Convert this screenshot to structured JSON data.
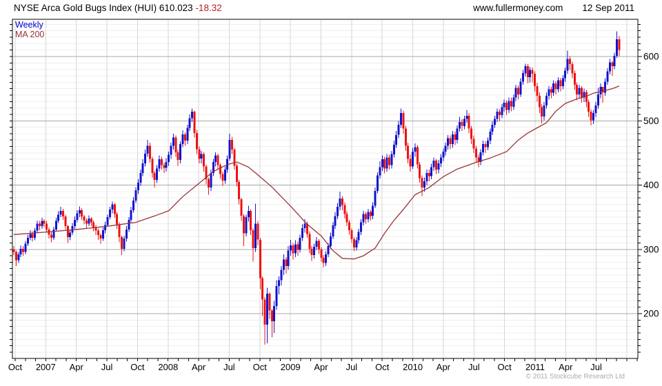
{
  "header": {
    "title": "NYSE Arca Gold Bugs Index (HUI)",
    "last_price": "610.023",
    "change": "-18.32",
    "site": "www.fullermoney.com",
    "date": "12 Sep 2011"
  },
  "legend": {
    "series": "Weekly",
    "ma": "MA 200"
  },
  "footer": {
    "copyright": "© 2011 Stockcube Research Ltd"
  },
  "colors": {
    "up": "#1212cc",
    "down": "#ee1111",
    "ma": "#993333",
    "change_text": "#b22222",
    "grid_minor": "#efefef",
    "grid_major": "#a8a8a8",
    "grid_vertical": "#d6d6d6",
    "frame": "#000000",
    "copyright": "#aaaaaa"
  },
  "chart_data": {
    "type": "candlestick",
    "interval": "weekly",
    "title": "NYSE Arca Gold Bugs Index (HUI)",
    "start": "Oct 2006",
    "end": "12 Sep 2011",
    "last_close": 610.023,
    "first_open": 300,
    "y_axis": {
      "side": "right",
      "ticks": [
        200,
        300,
        400,
        500,
        600
      ],
      "minor_step": 10,
      "range": [
        130,
        658
      ]
    },
    "x_axis": {
      "labels": [
        "Oct",
        "2007",
        "Apr",
        "Jul",
        "Oct",
        "2008",
        "Apr",
        "Jul",
        "Oct",
        "2009",
        "Apr",
        "Jul",
        "Oct",
        "2010",
        "Apr",
        "Jul",
        "Oct",
        "2011",
        "Apr",
        "Jul"
      ]
    },
    "candles_hlc": [
      [
        305,
        291,
        296
      ],
      [
        298,
        274,
        283
      ],
      [
        296,
        279,
        292
      ],
      [
        306,
        288,
        301
      ],
      [
        305,
        290,
        296
      ],
      [
        313,
        292,
        309
      ],
      [
        323,
        305,
        318
      ],
      [
        330,
        314,
        324
      ],
      [
        328,
        312,
        318
      ],
      [
        333,
        314,
        329
      ],
      [
        345,
        326,
        340
      ],
      [
        344,
        330,
        336
      ],
      [
        349,
        332,
        344
      ],
      [
        347,
        334,
        340
      ],
      [
        344,
        326,
        331
      ],
      [
        334,
        317,
        323
      ],
      [
        327,
        311,
        318
      ],
      [
        335,
        315,
        331
      ],
      [
        349,
        329,
        344
      ],
      [
        359,
        341,
        354
      ],
      [
        366,
        350,
        360
      ],
      [
        363,
        346,
        351
      ],
      [
        354,
        331,
        336
      ],
      [
        338,
        310,
        319
      ],
      [
        330,
        314,
        326
      ],
      [
        341,
        322,
        336
      ],
      [
        351,
        332,
        346
      ],
      [
        361,
        342,
        356
      ],
      [
        367,
        350,
        361
      ],
      [
        364,
        346,
        351
      ],
      [
        354,
        339,
        345
      ],
      [
        348,
        333,
        340
      ],
      [
        353,
        336,
        348
      ],
      [
        350,
        336,
        342
      ],
      [
        345,
        328,
        334
      ],
      [
        338,
        322,
        329
      ],
      [
        332,
        315,
        322
      ],
      [
        325,
        309,
        317
      ],
      [
        334,
        313,
        330
      ],
      [
        343,
        325,
        338
      ],
      [
        354,
        335,
        350
      ],
      [
        366,
        347,
        362
      ],
      [
        374,
        356,
        370
      ],
      [
        372,
        349,
        355
      ],
      [
        358,
        332,
        339
      ],
      [
        342,
        311,
        319
      ],
      [
        321,
        291,
        301
      ],
      [
        321,
        297,
        317
      ],
      [
        336,
        312,
        331
      ],
      [
        350,
        327,
        346
      ],
      [
        366,
        342,
        361
      ],
      [
        381,
        357,
        376
      ],
      [
        397,
        372,
        392
      ],
      [
        409,
        386,
        404
      ],
      [
        424,
        399,
        419
      ],
      [
        440,
        414,
        434
      ],
      [
        455,
        429,
        449
      ],
      [
        470,
        444,
        461
      ],
      [
        466,
        435,
        441
      ],
      [
        444,
        412,
        419
      ],
      [
        422,
        396,
        408
      ],
      [
        431,
        403,
        426
      ],
      [
        446,
        421,
        440
      ],
      [
        444,
        424,
        431
      ],
      [
        435,
        419,
        427
      ],
      [
        442,
        421,
        436
      ],
      [
        452,
        430,
        447
      ],
      [
        466,
        441,
        461
      ],
      [
        480,
        455,
        474
      ],
      [
        477,
        444,
        451
      ],
      [
        455,
        430,
        439
      ],
      [
        468,
        434,
        464
      ],
      [
        485,
        459,
        479
      ],
      [
        482,
        461,
        469
      ],
      [
        494,
        464,
        489
      ],
      [
        510,
        484,
        504
      ],
      [
        519,
        498,
        514
      ],
      [
        516,
        474,
        481
      ],
      [
        486,
        448,
        456
      ],
      [
        460,
        434,
        441
      ],
      [
        453,
        434,
        448
      ],
      [
        451,
        421,
        429
      ],
      [
        432,
        401,
        409
      ],
      [
        412,
        385,
        396
      ],
      [
        424,
        391,
        419
      ],
      [
        441,
        414,
        436
      ],
      [
        451,
        429,
        446
      ],
      [
        449,
        424,
        431
      ],
      [
        434,
        410,
        417
      ],
      [
        421,
        399,
        407
      ],
      [
        429,
        402,
        424
      ],
      [
        446,
        419,
        441
      ],
      [
        480,
        438,
        470
      ],
      [
        475,
        448,
        455
      ],
      [
        458,
        424,
        430
      ],
      [
        434,
        398,
        405
      ],
      [
        408,
        370,
        378
      ],
      [
        380,
        344,
        352
      ],
      [
        355,
        305,
        325
      ],
      [
        354,
        320,
        350
      ],
      [
        368,
        343,
        360
      ],
      [
        362,
        322,
        330
      ],
      [
        333,
        281,
        302
      ],
      [
        371,
        296,
        340
      ],
      [
        344,
        306,
        315
      ],
      [
        318,
        238,
        255
      ],
      [
        258,
        196,
        222
      ],
      [
        226,
        152,
        183
      ],
      [
        240,
        154,
        231
      ],
      [
        233,
        192,
        205
      ],
      [
        207,
        163,
        188
      ],
      [
        220,
        170,
        212
      ],
      [
        252,
        206,
        243
      ],
      [
        258,
        230,
        252
      ],
      [
        274,
        244,
        268
      ],
      [
        292,
        260,
        284
      ],
      [
        288,
        262,
        274
      ],
      [
        305,
        268,
        298
      ],
      [
        315,
        290,
        306
      ],
      [
        310,
        284,
        294
      ],
      [
        314,
        288,
        308
      ],
      [
        312,
        290,
        299
      ],
      [
        323,
        295,
        318
      ],
      [
        339,
        313,
        333
      ],
      [
        347,
        326,
        340
      ],
      [
        343,
        318,
        324
      ],
      [
        328,
        294,
        301
      ],
      [
        305,
        282,
        291
      ],
      [
        309,
        286,
        304
      ],
      [
        319,
        299,
        313
      ],
      [
        316,
        293,
        300
      ],
      [
        303,
        281,
        287
      ],
      [
        291,
        272,
        279
      ],
      [
        297,
        274,
        292
      ],
      [
        310,
        288,
        305
      ],
      [
        326,
        301,
        320
      ],
      [
        342,
        316,
        337
      ],
      [
        358,
        332,
        352
      ],
      [
        372,
        347,
        366
      ],
      [
        390,
        361,
        379
      ],
      [
        383,
        361,
        369
      ],
      [
        373,
        348,
        355
      ],
      [
        359,
        336,
        342
      ],
      [
        346,
        323,
        330
      ],
      [
        333,
        310,
        316
      ],
      [
        319,
        297,
        303
      ],
      [
        319,
        298,
        314
      ],
      [
        332,
        309,
        327
      ],
      [
        347,
        322,
        342
      ],
      [
        360,
        337,
        355
      ],
      [
        358,
        340,
        347
      ],
      [
        363,
        342,
        358
      ],
      [
        361,
        345,
        352
      ],
      [
        373,
        347,
        368
      ],
      [
        396,
        364,
        391
      ],
      [
        420,
        387,
        415
      ],
      [
        437,
        410,
        428
      ],
      [
        446,
        422,
        440
      ],
      [
        444,
        418,
        426
      ],
      [
        448,
        421,
        443
      ],
      [
        447,
        424,
        431
      ],
      [
        453,
        426,
        448
      ],
      [
        469,
        443,
        463
      ],
      [
        484,
        458,
        478
      ],
      [
        500,
        473,
        494
      ],
      [
        519,
        489,
        512
      ],
      [
        516,
        480,
        488
      ],
      [
        492,
        453,
        461
      ],
      [
        466,
        434,
        441
      ],
      [
        447,
        421,
        429
      ],
      [
        458,
        425,
        452
      ],
      [
        465,
        444,
        459
      ],
      [
        462,
        426,
        432
      ],
      [
        436,
        404,
        411
      ],
      [
        415,
        383,
        396
      ],
      [
        412,
        390,
        406
      ],
      [
        424,
        400,
        419
      ],
      [
        424,
        406,
        414
      ],
      [
        433,
        409,
        428
      ],
      [
        443,
        422,
        438
      ],
      [
        441,
        417,
        424
      ],
      [
        439,
        418,
        434
      ],
      [
        448,
        428,
        443
      ],
      [
        457,
        437,
        452
      ],
      [
        466,
        446,
        461
      ],
      [
        478,
        455,
        473
      ],
      [
        477,
        456,
        464
      ],
      [
        484,
        458,
        479
      ],
      [
        483,
        462,
        470
      ],
      [
        493,
        465,
        488
      ],
      [
        506,
        483,
        498
      ],
      [
        503,
        484,
        492
      ],
      [
        508,
        487,
        503
      ],
      [
        517,
        497,
        508
      ],
      [
        512,
        481,
        488
      ],
      [
        492,
        464,
        472
      ],
      [
        477,
        450,
        457
      ],
      [
        461,
        436,
        443
      ],
      [
        447,
        428,
        436
      ],
      [
        456,
        431,
        451
      ],
      [
        469,
        446,
        464
      ],
      [
        468,
        450,
        459
      ],
      [
        474,
        454,
        469
      ],
      [
        488,
        464,
        483
      ],
      [
        499,
        478,
        494
      ],
      [
        508,
        489,
        503
      ],
      [
        519,
        498,
        514
      ],
      [
        518,
        499,
        509
      ],
      [
        526,
        504,
        521
      ],
      [
        533,
        514,
        528
      ],
      [
        532,
        509,
        517
      ],
      [
        536,
        512,
        531
      ],
      [
        536,
        515,
        522
      ],
      [
        541,
        517,
        536
      ],
      [
        556,
        531,
        551
      ],
      [
        555,
        533,
        541
      ],
      [
        566,
        537,
        561
      ],
      [
        579,
        556,
        574
      ],
      [
        589,
        569,
        585
      ],
      [
        588,
        558,
        568
      ],
      [
        584,
        560,
        579
      ],
      [
        583,
        560,
        573
      ],
      [
        577,
        546,
        554
      ],
      [
        559,
        530,
        539
      ],
      [
        544,
        512,
        521
      ],
      [
        526,
        496,
        507
      ],
      [
        529,
        501,
        524
      ],
      [
        544,
        519,
        539
      ],
      [
        554,
        533,
        549
      ],
      [
        553,
        535,
        544
      ],
      [
        563,
        539,
        558
      ],
      [
        562,
        541,
        549
      ],
      [
        568,
        544,
        563
      ],
      [
        567,
        546,
        554
      ],
      [
        571,
        549,
        566
      ],
      [
        583,
        561,
        578
      ],
      [
        609,
        573,
        596
      ],
      [
        600,
        579,
        588
      ],
      [
        592,
        566,
        574
      ],
      [
        578,
        548,
        556
      ],
      [
        560,
        532,
        541
      ],
      [
        556,
        535,
        551
      ],
      [
        554,
        528,
        536
      ],
      [
        550,
        529,
        545
      ],
      [
        548,
        521,
        529
      ],
      [
        533,
        506,
        514
      ],
      [
        518,
        493,
        501
      ],
      [
        517,
        495,
        512
      ],
      [
        529,
        506,
        524
      ],
      [
        551,
        519,
        541
      ],
      [
        558,
        535,
        553
      ],
      [
        549,
        528,
        544
      ],
      [
        566,
        539,
        561
      ],
      [
        582,
        556,
        577
      ],
      [
        596,
        572,
        591
      ],
      [
        593,
        570,
        585
      ],
      [
        606,
        580,
        601
      ],
      [
        639,
        598,
        627
      ],
      [
        632,
        600,
        610.02
      ]
    ],
    "ma200": [
      [
        0,
        323
      ],
      [
        14,
        327
      ],
      [
        27,
        331
      ],
      [
        40,
        336
      ],
      [
        52,
        342
      ],
      [
        60,
        352
      ],
      [
        66,
        360
      ],
      [
        72,
        382
      ],
      [
        79,
        403
      ],
      [
        85,
        421
      ],
      [
        91,
        432
      ],
      [
        95,
        436
      ],
      [
        100,
        428
      ],
      [
        104,
        416
      ],
      [
        110,
        397
      ],
      [
        118,
        367
      ],
      [
        125,
        339
      ],
      [
        131,
        321
      ],
      [
        136,
        298
      ],
      [
        140,
        286
      ],
      [
        145,
        285
      ],
      [
        149,
        290
      ],
      [
        154,
        302
      ],
      [
        158,
        325
      ],
      [
        162,
        345
      ],
      [
        166,
        362
      ],
      [
        171,
        385
      ],
      [
        177,
        396
      ],
      [
        183,
        413
      ],
      [
        189,
        425
      ],
      [
        196,
        434
      ],
      [
        203,
        442
      ],
      [
        210,
        452
      ],
      [
        215,
        470
      ],
      [
        219,
        481
      ],
      [
        223,
        489
      ],
      [
        227,
        497
      ],
      [
        231,
        515
      ],
      [
        235,
        527
      ],
      [
        240,
        534
      ],
      [
        244,
        538
      ],
      [
        247,
        543
      ],
      [
        252,
        547
      ],
      [
        255,
        550
      ],
      [
        258,
        554
      ]
    ]
  }
}
